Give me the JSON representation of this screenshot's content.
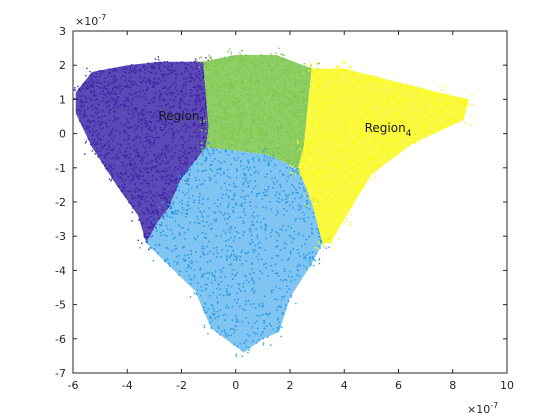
{
  "chart_data": {
    "type": "scatter",
    "title": "",
    "xlabel": "",
    "ylabel": "",
    "x_exponent_label": {
      "base": "×10",
      "power": "-7"
    },
    "y_exponent_label": {
      "base": "×10",
      "power": "-7"
    },
    "xlim": [
      -6,
      10
    ],
    "ylim": [
      -7,
      3
    ],
    "x_ticks": [
      -6,
      -4,
      -2,
      0,
      2,
      4,
      6,
      8,
      10
    ],
    "y_ticks": [
      3,
      2,
      1,
      0,
      -1,
      -2,
      -3,
      -4,
      -5,
      -6,
      -7
    ],
    "x_tick_labels": [
      "-6",
      "-4",
      "-2",
      "0",
      "2",
      "4",
      "6",
      "8",
      "10"
    ],
    "y_tick_labels": [
      "3",
      "2",
      "1",
      "0",
      "-1",
      "-2",
      "-3",
      "-4",
      "-5",
      "-6",
      "-7"
    ],
    "grid": false,
    "series": [
      {
        "color": "#3e26a8",
        "polygon": [
          [
            -5.9,
            1.2
          ],
          [
            -5.3,
            1.8
          ],
          [
            -4.0,
            2.0
          ],
          [
            -2.8,
            2.1
          ],
          [
            -1.2,
            2.1
          ],
          [
            -1.0,
            0.2
          ],
          [
            -1.1,
            -0.4
          ],
          [
            -2.0,
            -1.3
          ],
          [
            -2.5,
            -2.2
          ],
          [
            -2.9,
            -2.6
          ],
          [
            -3.3,
            -3.2
          ],
          [
            -3.6,
            -2.4
          ],
          [
            -4.4,
            -1.5
          ],
          [
            -5.3,
            -0.4
          ],
          [
            -5.9,
            0.6
          ]
        ],
        "density": 0.9
      },
      {
        "color": "#80c850",
        "polygon": [
          [
            -1.2,
            2.1
          ],
          [
            0.0,
            2.3
          ],
          [
            1.5,
            2.3
          ],
          [
            2.8,
            1.9
          ],
          [
            2.5,
            -0.4
          ],
          [
            2.3,
            -1.0
          ],
          [
            1.1,
            -0.6
          ],
          [
            -1.1,
            -0.4
          ],
          [
            -1.0,
            0.2
          ]
        ],
        "density": 0.95
      },
      {
        "color": "#2b9ce8",
        "polygon": [
          [
            -1.1,
            -0.4
          ],
          [
            1.1,
            -0.6
          ],
          [
            2.3,
            -1.0
          ],
          [
            2.8,
            -2.0
          ],
          [
            3.2,
            -3.2
          ],
          [
            2.8,
            -3.8
          ],
          [
            2.0,
            -4.8
          ],
          [
            1.6,
            -5.8
          ],
          [
            1.0,
            -6.0
          ],
          [
            0.3,
            -6.4
          ],
          [
            -0.9,
            -5.7
          ],
          [
            -1.5,
            -4.6
          ],
          [
            -2.8,
            -3.6
          ],
          [
            -3.3,
            -3.2
          ],
          [
            -2.9,
            -2.6
          ],
          [
            -2.5,
            -2.2
          ],
          [
            -2.0,
            -1.3
          ]
        ],
        "density": 0.45
      },
      {
        "color": "#f9f914",
        "polygon": [
          [
            2.8,
            1.9
          ],
          [
            4.0,
            1.9
          ],
          [
            6.0,
            1.5
          ],
          [
            7.5,
            1.2
          ],
          [
            8.6,
            1.0
          ],
          [
            8.4,
            0.4
          ],
          [
            6.5,
            -0.3
          ],
          [
            5.0,
            -1.2
          ],
          [
            4.0,
            -2.5
          ],
          [
            3.5,
            -3.2
          ],
          [
            3.2,
            -3.2
          ],
          [
            2.8,
            -2.0
          ],
          [
            2.3,
            -1.0
          ],
          [
            2.5,
            -0.4
          ]
        ],
        "density": 0.8
      }
    ],
    "annotations": [
      {
        "text": "Region",
        "sub": "1",
        "x": -2.85,
        "y": 0.4
      },
      {
        "text": "Region",
        "sub": "4",
        "x": 4.75,
        "y": 0.05
      }
    ]
  }
}
